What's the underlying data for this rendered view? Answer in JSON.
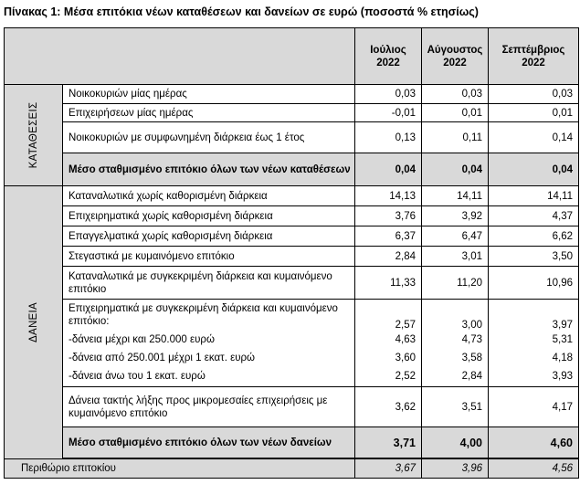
{
  "title": "Πίνακας 1: Μέσα επιτόκια νέων καταθέσεων και δανείων σε ευρώ (ποσοστά % ετησίως)",
  "headers": [
    {
      "month": "Ιούλιος",
      "year": "2022"
    },
    {
      "month": "Αύγουστος",
      "year": "2022"
    },
    {
      "month": "Σεπτέμβριος",
      "year": "2022"
    }
  ],
  "deposits": {
    "section_label": "ΚΑΤΑΘΕΣΕΙΣ",
    "rows": [
      {
        "label": "Νοικοκυριών μίας ημέρας",
        "v": [
          "0,03",
          "0,03",
          "0,03"
        ]
      },
      {
        "label": "Επιχειρήσεων μίας ημέρας",
        "v": [
          "-0,01",
          "0,01",
          "0,01"
        ]
      },
      {
        "label": "Νοικοκυριών με συμφωνημένη διάρκεια έως 1 έτος",
        "v": [
          "0,13",
          "0,11",
          "0,14"
        ]
      },
      {
        "label": "Μέσο σταθμισμένο επιτόκιο όλων των νέων καταθέσεων",
        "v": [
          "0,04",
          "0,04",
          "0,04"
        ]
      }
    ]
  },
  "loans": {
    "section_label": "ΔΑΝΕΙΑ",
    "rows": [
      {
        "label": "Καταναλωτικά χωρίς καθορισμένη διάρκεια",
        "v": [
          "14,13",
          "14,11",
          "14,11"
        ]
      },
      {
        "label": "Επιχειρηματικά χωρίς καθορισμένη διάρκεια",
        "v": [
          "3,76",
          "3,92",
          "4,37"
        ]
      },
      {
        "label": "Επαγγελματικά χωρίς καθορισμένη διάρκεια",
        "v": [
          "6,37",
          "6,47",
          "6,62"
        ]
      },
      {
        "label": "Στεγαστικά με κυμαινόμενο επιτόκιο",
        "v": [
          "2,84",
          "3,01",
          "3,50"
        ]
      },
      {
        "label": "Καταναλωτικά με συγκεκριμένη διάρκεια και κυμαινόμενο επιτόκιο",
        "v": [
          "11,33",
          "11,20",
          "10,96"
        ]
      }
    ],
    "business_group": {
      "label": "Επιχειρηματικά με συγκεκριμένη διάρκεια και κυμαινόμενο επιτόκιο:",
      "total": [
        "2,57",
        "3,00",
        "3,97"
      ],
      "subrows": [
        {
          "label": "-δάνεια μέχρι και 250.000 ευρώ",
          "v": [
            "4,63",
            "4,73",
            "5,31"
          ]
        },
        {
          "label": "-δάνεια από 250.001 μέχρι 1 εκατ. ευρώ",
          "v": [
            "3,60",
            "3,58",
            "4,18"
          ]
        },
        {
          "label": "-δάνεια άνω του 1 εκατ. ευρώ",
          "v": [
            "2,52",
            "2,84",
            "3,93"
          ]
        }
      ]
    },
    "fixed_term": {
      "label": "Δάνεια τακτής λήξης προς μικρομεσαίες επιχειρήσεις με κυμαινόμενο επιτόκιο",
      "v": [
        "3,62",
        "3,51",
        "4,17"
      ]
    },
    "average": {
      "label": "Μέσο σταθμισμένο επιτόκιο όλων των νέων δανείων",
      "v": [
        "3,71",
        "4,00",
        "4,60"
      ]
    }
  },
  "margin": {
    "label": "Περιθώριο επιτοκίου",
    "v": [
      "3,67",
      "3,96",
      "4,56"
    ]
  }
}
